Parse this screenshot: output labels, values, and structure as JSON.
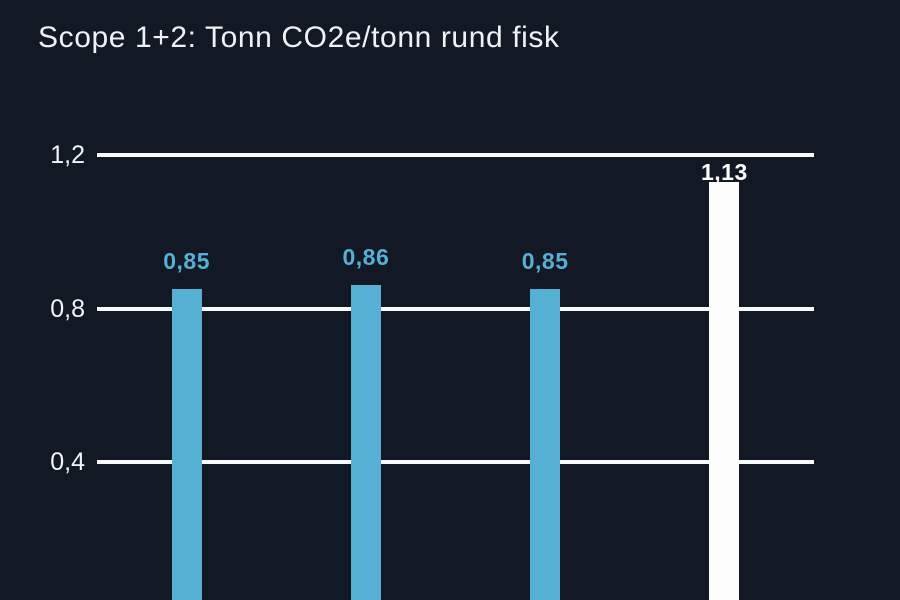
{
  "page": {
    "background_color": "#121924"
  },
  "chart_data": {
    "type": "bar",
    "title": "Scope 1+2: Tonn CO2e/tonn rund fisk",
    "values": [
      0.85,
      0.86,
      0.85,
      1.13
    ],
    "value_labels": [
      "0,85",
      "0,86",
      "0,85",
      "1,13"
    ],
    "bar_colors": [
      "#56b0d3",
      "#56b0d3",
      "#56b0d3",
      "#fdfdfd"
    ],
    "y_ticks": [
      {
        "value": 1.2,
        "label": "1,2"
      },
      {
        "value": 0.8,
        "label": "0,8"
      },
      {
        "value": 0.4,
        "label": "0,4"
      }
    ],
    "xlabel": "",
    "ylabel": "",
    "grid": true,
    "legend": false,
    "ylim_visible": [
      0.04,
      1.6
    ]
  },
  "colors": {
    "background": "#121924",
    "bar_blue": "#56b0d3",
    "bar_white": "#fdfdfd",
    "gridline": "#f7f9fa",
    "title_text": "#eef2f5",
    "axis_text": "#f2f5f7"
  }
}
